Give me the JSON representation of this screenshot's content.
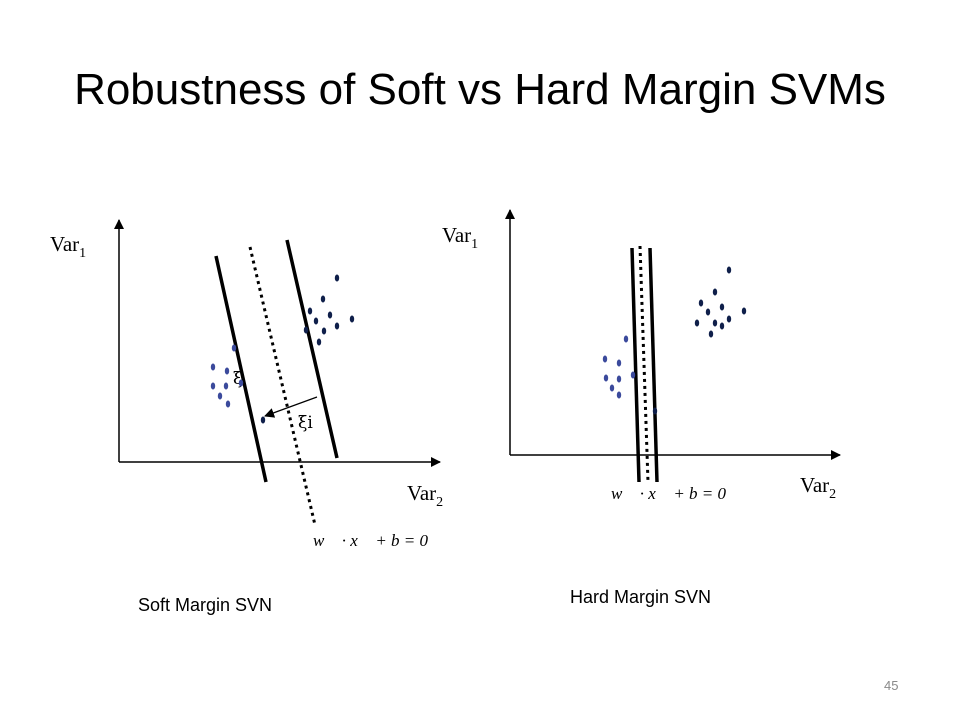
{
  "slide": {
    "title": "Robustness of Soft vs Hard Margin SVMs",
    "page_number": "45"
  },
  "colors": {
    "dot_blue": "#3b4a9c",
    "dot_navy": "#0f1f4a",
    "lines": "#000000"
  },
  "soft_panel": {
    "y_axis_label": "Var",
    "y_axis_sub": "1",
    "x_axis_label": "Var",
    "x_axis_sub": "2",
    "equation": "w⃗ · x⃗ + b = 0",
    "slack_small_label": "ξ",
    "slack_label": "ξi",
    "caption": "Soft Margin SVN"
  },
  "hard_panel": {
    "y_axis_label": "Var",
    "y_axis_sub": "1",
    "x_axis_label": "Var",
    "x_axis_sub": "2",
    "equation": "w⃗ · x⃗ + b = 0",
    "caption": "Hard Margin SVN"
  }
}
